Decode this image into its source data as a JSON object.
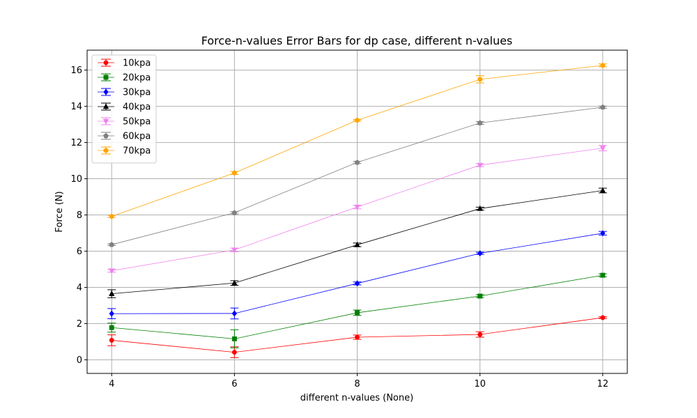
{
  "chart_data": {
    "type": "line",
    "title": "Force-n-values Error Bars for dp case, different n-values",
    "xlabel": "different n-values (None)",
    "ylabel": "Force (N)",
    "x": [
      4,
      6,
      8,
      10,
      12
    ],
    "x_ticks": [
      "4",
      "6",
      "8",
      "10",
      "12"
    ],
    "y_ticks": [
      "0",
      "2",
      "4",
      "6",
      "8",
      "10",
      "12",
      "14",
      "16"
    ],
    "xlim": [
      3.6,
      12.4
    ],
    "ylim": [
      -0.75,
      17.1
    ],
    "grid": true,
    "legend_position": "top-left",
    "series": [
      {
        "name": "10kpa",
        "color": "#ff0000",
        "marker": "circle",
        "values": [
          1.08,
          0.42,
          1.25,
          1.4,
          2.33
        ],
        "errors": [
          0.3,
          0.3,
          0.12,
          0.15,
          0.05
        ]
      },
      {
        "name": "20kpa",
        "color": "#008000",
        "marker": "square",
        "values": [
          1.78,
          1.16,
          2.6,
          3.52,
          4.67
        ],
        "errors": [
          0.25,
          0.5,
          0.15,
          0.08,
          0.08
        ]
      },
      {
        "name": "30kpa",
        "color": "#0000ff",
        "marker": "diamond",
        "values": [
          2.55,
          2.56,
          4.22,
          5.88,
          6.99
        ],
        "errors": [
          0.28,
          0.3,
          0.08,
          0.06,
          0.1
        ]
      },
      {
        "name": "40kpa",
        "color": "#000000",
        "marker": "triangle-up",
        "values": [
          3.65,
          4.24,
          6.35,
          8.35,
          9.35
        ],
        "errors": [
          0.22,
          0.13,
          0.1,
          0.08,
          0.13
        ]
      },
      {
        "name": "50kpa",
        "color": "#ee82ee",
        "marker": "triangle-down",
        "values": [
          4.92,
          6.07,
          8.44,
          10.75,
          11.69
        ],
        "errors": [
          0.08,
          0.1,
          0.1,
          0.08,
          0.15
        ]
      },
      {
        "name": "60kpa",
        "color": "#808080",
        "marker": "pentagon",
        "values": [
          6.36,
          8.12,
          10.9,
          13.08,
          13.95
        ],
        "errors": [
          0.05,
          0.06,
          0.06,
          0.08,
          0.06
        ]
      },
      {
        "name": "70kpa",
        "color": "#ffa500",
        "marker": "hexagon",
        "values": [
          7.92,
          10.32,
          13.23,
          15.49,
          16.26
        ],
        "errors": [
          0.06,
          0.08,
          0.04,
          0.2,
          0.08
        ]
      }
    ]
  }
}
